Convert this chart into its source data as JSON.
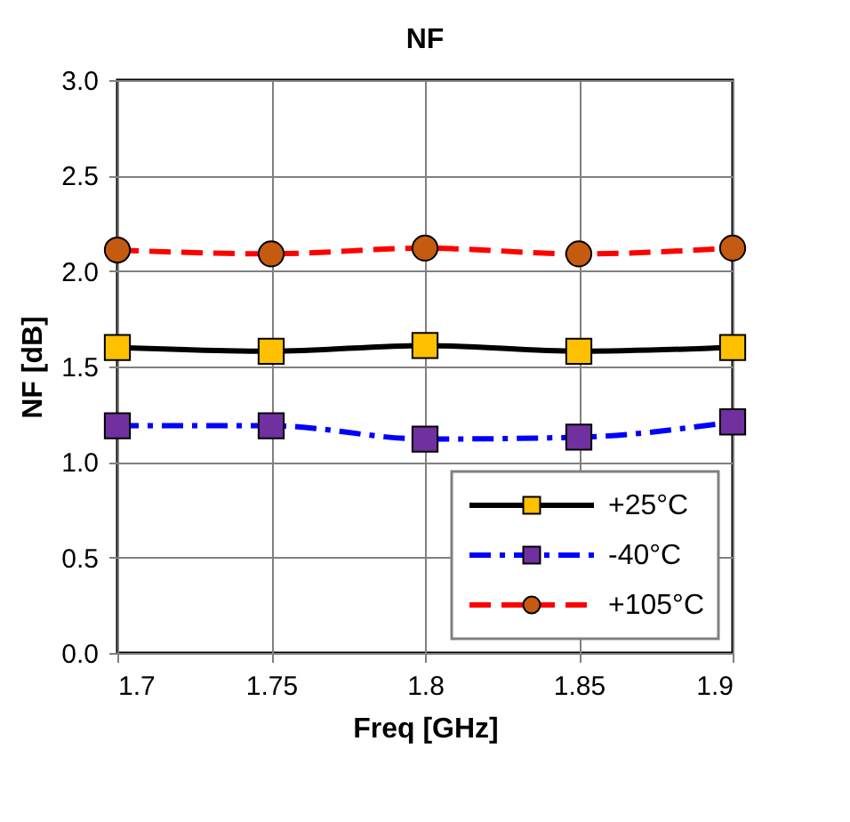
{
  "chart_data": {
    "type": "line",
    "title": "NF",
    "xlabel": "Freq [GHz]",
    "ylabel": "NF [dB]",
    "x": [
      1.7,
      1.75,
      1.8,
      1.85,
      1.9
    ],
    "series": [
      {
        "name": "+25°C",
        "color": "#000000",
        "colors": [
          "#ffc000",
          "#ffc000",
          "#ffc000",
          "#ffc000",
          "#ffc000"
        ],
        "marker": "square",
        "line_style": "solid",
        "values": [
          1.6,
          1.58,
          1.61,
          1.58,
          1.6
        ]
      },
      {
        "name": "-40°C",
        "color": "#0000ff",
        "colors": [
          "#7030a0",
          "#7030a0",
          "#7030a0",
          "#7030a0",
          "#7030a0"
        ],
        "marker": "square",
        "line_style": "dashdot",
        "values": [
          1.19,
          1.19,
          1.12,
          1.13,
          1.21
        ]
      },
      {
        "name": "+105°C",
        "color": "#ff0000",
        "colors": [
          "#c55a11",
          "#c55a11",
          "#c55a11",
          "#c55a11",
          "#c55a11"
        ],
        "marker": "circle",
        "line_style": "dashed",
        "values": [
          2.11,
          2.09,
          2.12,
          2.09,
          2.12
        ]
      }
    ],
    "xlim": [
      1.7,
      1.9
    ],
    "xticks": [
      1.7,
      1.75,
      1.8,
      1.85,
      1.9
    ],
    "ylim": [
      0,
      3
    ],
    "yticks": [
      {
        "value": 0,
        "label": "0.0"
      },
      {
        "value": 0.5,
        "label": "0.5"
      },
      {
        "value": 1,
        "label": "1.0"
      },
      {
        "value": 1.5,
        "label": "1.5"
      },
      {
        "value": 2,
        "label": "2.0"
      },
      {
        "value": 2.5,
        "label": "2.5"
      },
      {
        "value": 3,
        "label": "3.0"
      }
    ],
    "grid": true,
    "legend": "bottom right"
  }
}
